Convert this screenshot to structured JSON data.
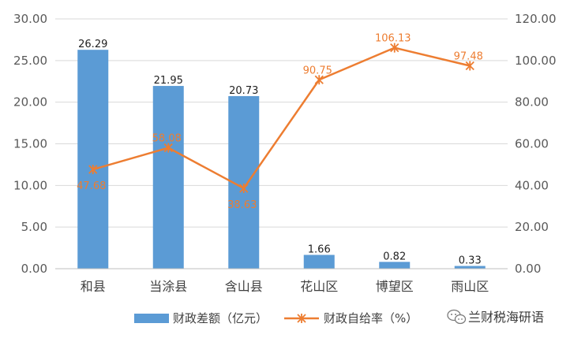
{
  "chart_data": {
    "type": "bar",
    "categories": [
      "和县",
      "当涂县",
      "含山县",
      "花山区",
      "博望区",
      "雨山区"
    ],
    "series": [
      {
        "name": "财政差额（亿元）",
        "type": "bar",
        "axis": "left",
        "color": "#5b9bd5",
        "values": [
          26.29,
          21.95,
          20.73,
          1.66,
          0.82,
          0.33
        ],
        "labels": [
          "26.29",
          "21.95",
          "20.73",
          "1.66",
          "0.82",
          "0.33"
        ]
      },
      {
        "name": "财政自给率（%）",
        "type": "line",
        "axis": "right",
        "color": "#ed7d31",
        "marker": "asterisk",
        "values": [
          47.68,
          58.08,
          38.63,
          90.75,
          106.13,
          97.48
        ],
        "labels": [
          "47.68",
          "58.08",
          "38.63",
          "90.75",
          "106.13",
          "97.48"
        ]
      }
    ],
    "y_left": {
      "min": 0,
      "max": 30,
      "ticks": [
        "0.00",
        "5.00",
        "10.00",
        "15.00",
        "20.00",
        "25.00",
        "30.00"
      ]
    },
    "y_right": {
      "min": 0,
      "max": 120,
      "ticks": [
        "0.00",
        "20.00",
        "40.00",
        "60.00",
        "80.00",
        "100.00",
        "120.00"
      ]
    },
    "grid": true,
    "legend": "bottom"
  },
  "watermark": {
    "icon": "wechat-icon",
    "text": "兰财税海研语"
  }
}
